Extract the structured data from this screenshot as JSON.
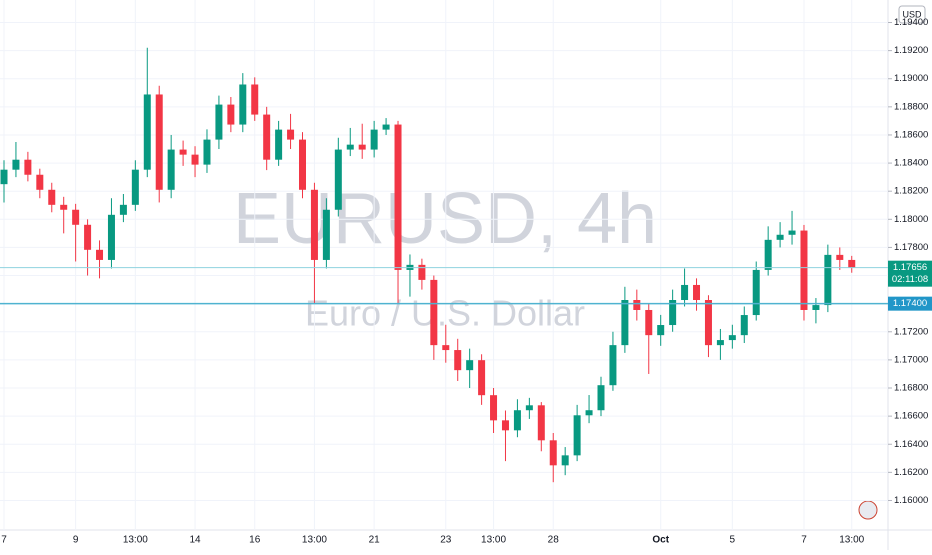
{
  "chart_data": {
    "type": "candlestick",
    "title": "EURUSD, 4h",
    "subtitle": "Euro / U.S. Dollar",
    "currency": "USD",
    "up_color": "#089981",
    "down_color": "#f23645",
    "grid": true,
    "categories": [
      "7",
      null,
      null,
      null,
      null,
      null,
      "9",
      null,
      null,
      null,
      null,
      "13:00",
      null,
      null,
      null,
      null,
      "14",
      null,
      null,
      null,
      null,
      "16",
      null,
      null,
      null,
      null,
      "13:00",
      null,
      null,
      null,
      null,
      "21",
      null,
      null,
      null,
      null,
      null,
      "23",
      null,
      null,
      null,
      "13:00",
      null,
      null,
      null,
      null,
      "28",
      null,
      null,
      null,
      null,
      null,
      null,
      null,
      null,
      "Oct",
      null,
      null,
      null,
      null,
      null,
      "5",
      null,
      null,
      null,
      null,
      null,
      "7",
      null,
      null,
      null,
      "13:00"
    ],
    "open": [
      1.1825,
      1.18353,
      1.18424,
      1.18317,
      1.1821,
      1.18103,
      1.18068,
      1.17961,
      1.17783,
      1.17711,
      1.18032,
      1.18103,
      1.18353,
      1.18888,
      1.1821,
      1.18496,
      1.1846,
      1.18389,
      1.18567,
      1.18816,
      1.18674,
      1.18959,
      1.18745,
      1.18424,
      1.18638,
      1.18567,
      1.1821,
      1.17711,
      1.18068,
      1.18496,
      1.18531,
      1.18496,
      1.18638,
      1.18674,
      1.1764,
      1.17676,
      1.17569,
      1.17105,
      1.1707,
      1.16927,
      1.16998,
      1.16749,
      1.1657,
      1.16499,
      1.16642,
      1.16677,
      1.16428,
      1.1625,
      1.16321,
      1.16606,
      1.16642,
      1.1682,
      1.17105,
      1.17426,
      1.17355,
      1.17176,
      1.17248,
      1.17426,
      1.17533,
      1.17426,
      1.17105,
      1.17141,
      1.17176,
      1.17319,
      1.1764,
      1.17854,
      1.1789,
      1.1792,
      1.17355,
      1.1739,
      1.17747,
      1.17711
    ],
    "high": [
      1.1842,
      1.1855,
      1.1848,
      1.1836,
      1.1826,
      1.1816,
      1.1811,
      1.18,
      1.1785,
      1.1815,
      1.1818,
      1.1842,
      1.1922,
      1.1895,
      1.186,
      1.1856,
      1.1852,
      1.1864,
      1.1888,
      1.1887,
      1.1904,
      1.1901,
      1.188,
      1.187,
      1.1875,
      1.1862,
      1.1826,
      1.1815,
      1.1858,
      1.1865,
      1.1868,
      1.187,
      1.1872,
      1.187,
      1.1775,
      1.1772,
      1.176,
      1.1725,
      1.1715,
      1.1708,
      1.1704,
      1.168,
      1.1664,
      1.1672,
      1.1673,
      1.167,
      1.1648,
      1.1638,
      1.1668,
      1.1675,
      1.1688,
      1.172,
      1.1752,
      1.175,
      1.174,
      1.1732,
      1.175,
      1.1765,
      1.1758,
      1.1746,
      1.1722,
      1.1725,
      1.1738,
      1.177,
      1.1795,
      1.1798,
      1.1806,
      1.1796,
      1.1744,
      1.1782,
      1.178,
      1.1774
    ],
    "low": [
      1.1812,
      1.183,
      1.1827,
      1.1815,
      1.1805,
      1.179,
      1.177,
      1.176,
      1.1758,
      1.1765,
      1.1798,
      1.1806,
      1.183,
      1.1812,
      1.1815,
      1.1838,
      1.183,
      1.1833,
      1.185,
      1.1862,
      1.1862,
      1.187,
      1.1835,
      1.1838,
      1.185,
      1.1815,
      1.174,
      1.1765,
      1.1802,
      1.1845,
      1.1843,
      1.1844,
      1.186,
      1.174,
      1.1745,
      1.175,
      1.17,
      1.1698,
      1.1685,
      1.168,
      1.1668,
      1.1648,
      1.1628,
      1.1645,
      1.1658,
      1.1635,
      1.1613,
      1.1618,
      1.1628,
      1.1655,
      1.166,
      1.1678,
      1.1705,
      1.1728,
      1.169,
      1.171,
      1.172,
      1.1738,
      1.1735,
      1.1702,
      1.17,
      1.1708,
      1.1712,
      1.1728,
      1.176,
      1.178,
      1.1782,
      1.1728,
      1.1726,
      1.1734,
      1.1764,
      1.1762
    ],
    "close": [
      1.18353,
      1.18424,
      1.18317,
      1.1821,
      1.18103,
      1.18068,
      1.17961,
      1.17783,
      1.17711,
      1.18032,
      1.18103,
      1.18353,
      1.18888,
      1.1821,
      1.18496,
      1.1846,
      1.18389,
      1.18567,
      1.18816,
      1.18674,
      1.18959,
      1.18745,
      1.18424,
      1.18638,
      1.18567,
      1.1821,
      1.17711,
      1.18068,
      1.18496,
      1.18531,
      1.18496,
      1.18638,
      1.18674,
      1.1764,
      1.17676,
      1.17569,
      1.17105,
      1.1707,
      1.16927,
      1.16998,
      1.16749,
      1.1657,
      1.16499,
      1.16642,
      1.16677,
      1.16428,
      1.1625,
      1.16321,
      1.16606,
      1.16642,
      1.1682,
      1.17105,
      1.17426,
      1.17355,
      1.17176,
      1.17248,
      1.17426,
      1.17533,
      1.17426,
      1.17105,
      1.17141,
      1.17176,
      1.17319,
      1.1764,
      1.17854,
      1.1789,
      1.1792,
      1.17355,
      1.1739,
      1.17747,
      1.17711,
      1.17656
    ],
    "ylim": [
      1.1579,
      1.1956
    ],
    "yticks": [
      {
        "value": 1.16,
        "label": "1.16000"
      },
      {
        "value": 1.162,
        "label": "1.16200"
      },
      {
        "value": 1.164,
        "label": "1.16400"
      },
      {
        "value": 1.166,
        "label": "1.16600"
      },
      {
        "value": 1.168,
        "label": "1.16800"
      },
      {
        "value": 1.17,
        "label": "1.17000"
      },
      {
        "value": 1.172,
        "label": "1.17200"
      },
      {
        "value": 1.174,
        "label": "1.17400"
      },
      {
        "value": 1.176,
        "label": "1.17600"
      },
      {
        "value": 1.178,
        "label": "1.17800"
      },
      {
        "value": 1.18,
        "label": "1.18000"
      },
      {
        "value": 1.182,
        "label": "1.18200"
      },
      {
        "value": 1.184,
        "label": "1.18400"
      },
      {
        "value": 1.186,
        "label": "1.18600"
      },
      {
        "value": 1.188,
        "label": "1.18800"
      },
      {
        "value": 1.19,
        "label": "1.19000"
      },
      {
        "value": 1.192,
        "label": "1.19200"
      },
      {
        "value": 1.194,
        "label": "1.19400"
      }
    ],
    "price_lines": [
      {
        "value": 1.17656,
        "label": "1.17656",
        "countdown": "02:11:08",
        "color": "#089981",
        "line_color": "#8fd3df"
      },
      {
        "value": 1.174,
        "label": "1.17400",
        "color": "#2196c8",
        "line_color": "#4fb3d0"
      }
    ]
  }
}
